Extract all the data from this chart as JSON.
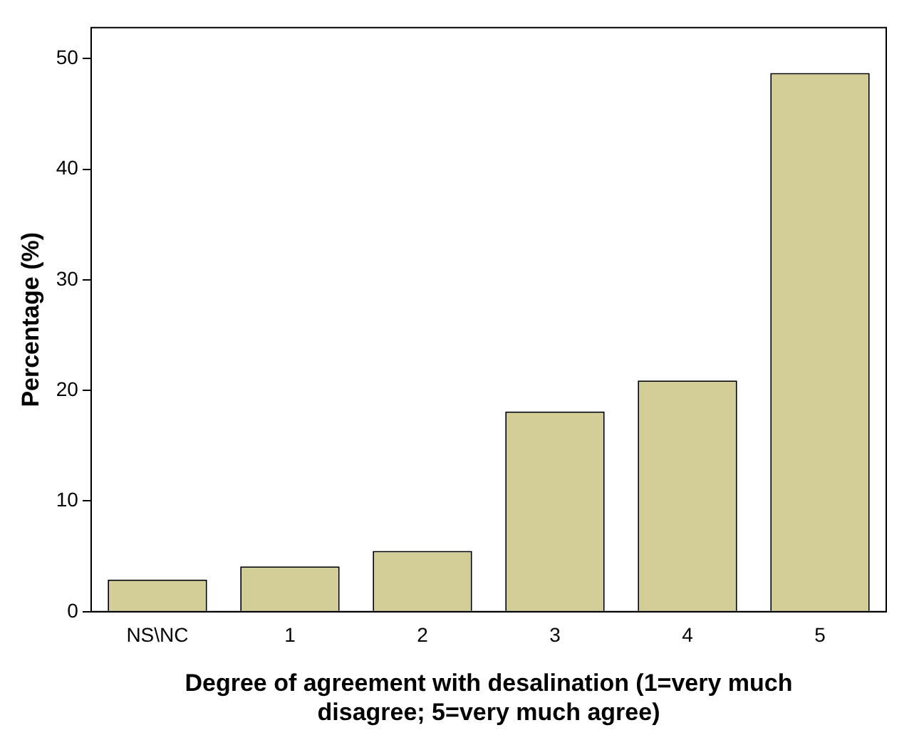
{
  "chart_data": {
    "type": "bar",
    "xlabel": "Degree of agreement with desalination (1=very much disagree; 5=very much agree)",
    "ylabel": "Percentage (%)",
    "categories": [
      "NS\\NC",
      "1",
      "2",
      "3",
      "4",
      "5"
    ],
    "values": [
      2.9,
      4.1,
      5.5,
      18.1,
      20.9,
      48.7
    ],
    "color": "#d3ce98",
    "ylim": [
      0,
      52.8
    ],
    "yticks": [
      0,
      10,
      20,
      30,
      40,
      50
    ],
    "grid": false,
    "legend": false
  }
}
